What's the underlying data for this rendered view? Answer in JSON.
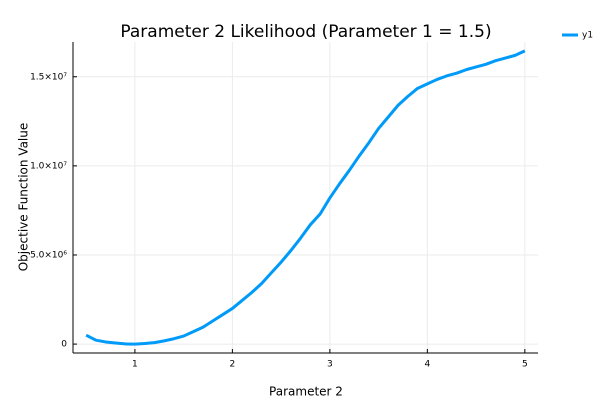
{
  "chart_data": {
    "type": "line",
    "title": "Parameter 2 Likelihood (Parameter 1 = 1.5)",
    "xlabel": "Parameter 2",
    "ylabel": "Objective Function Value",
    "x": [
      0.5,
      0.6,
      0.7,
      0.8,
      0.9,
      1.0,
      1.1,
      1.2,
      1.3,
      1.4,
      1.5,
      1.6,
      1.7,
      1.8,
      1.9,
      2.0,
      2.1,
      2.2,
      2.3,
      2.4,
      2.5,
      2.6,
      2.7,
      2.8,
      2.9,
      3.0,
      3.1,
      3.2,
      3.3,
      3.4,
      3.5,
      3.6,
      3.7,
      3.8,
      3.9,
      4.0,
      4.1,
      4.2,
      4.3,
      4.4,
      4.5,
      4.6,
      4.7,
      4.8,
      4.9,
      5.0
    ],
    "series": [
      {
        "name": "y1",
        "color": "#009af9",
        "values": [
          500000,
          220000,
          120000,
          60000,
          10000,
          0,
          30000,
          80000,
          180000,
          300000,
          450000,
          700000,
          950000,
          1300000,
          1650000,
          2000000,
          2450000,
          2900000,
          3400000,
          4000000,
          4600000,
          5250000,
          5950000,
          6700000,
          7300000,
          8200000,
          9000000,
          9750000,
          10550000,
          11300000,
          12100000,
          12750000,
          13400000,
          13900000,
          14350000,
          14600000,
          14850000,
          15050000,
          15200000,
          15400000,
          15550000,
          15700000,
          15900000,
          16050000,
          16200000,
          16450000
        ]
      }
    ],
    "xlim": [
      0.365,
      5.135
    ],
    "xticks": [
      1,
      2,
      3,
      4,
      5
    ],
    "ylim": [
      -500000,
      16950000
    ],
    "yticks": [
      0,
      {
        "value": 5000000,
        "label": "5.0×10⁶"
      },
      {
        "value": 10000000,
        "label": "1.0×10⁷"
      },
      {
        "value": 15000000,
        "label": "1.5×10⁷"
      }
    ],
    "grid": true,
    "legend": "top-right"
  }
}
